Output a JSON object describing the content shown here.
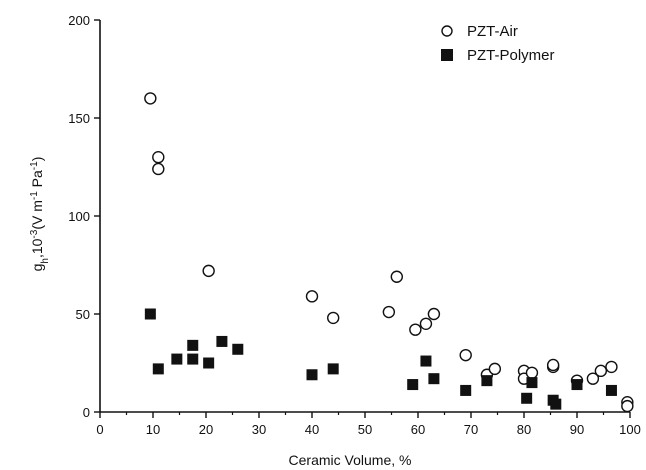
{
  "chart_data": {
    "type": "scatter",
    "title": "",
    "xlabel": "Ceramic Volume, %",
    "ylabel": {
      "prefix": "g",
      "sub": "h",
      "mid": ",10",
      "sup1": "-3",
      "units": "(V m",
      "sup2": "-1",
      "units2": " Pa",
      "sup3": "-1",
      "close": ")"
    },
    "xlim": [
      0,
      100
    ],
    "ylim": [
      0,
      200
    ],
    "xticks": [
      0,
      10,
      20,
      30,
      40,
      50,
      60,
      70,
      80,
      90,
      100
    ],
    "yticks": [
      0,
      50,
      100,
      150,
      200
    ],
    "legend_position": "top-right",
    "grid": false,
    "series": [
      {
        "name": "PZT-Air",
        "marker": "open-circle",
        "color": "#111111",
        "points": [
          [
            9.5,
            160
          ],
          [
            11,
            130
          ],
          [
            11,
            124
          ],
          [
            20.5,
            72
          ],
          [
            40,
            59
          ],
          [
            44,
            48
          ],
          [
            54.5,
            51
          ],
          [
            56,
            69
          ],
          [
            59.5,
            42
          ],
          [
            61.5,
            45
          ],
          [
            63,
            50
          ],
          [
            69,
            29
          ],
          [
            73,
            19
          ],
          [
            74.5,
            22
          ],
          [
            80,
            21
          ],
          [
            80,
            17
          ],
          [
            81.5,
            20
          ],
          [
            85.5,
            23
          ],
          [
            85.5,
            24
          ],
          [
            90,
            16
          ],
          [
            93,
            17
          ],
          [
            94.5,
            21
          ],
          [
            96.5,
            23
          ],
          [
            99.5,
            5
          ],
          [
            99.5,
            3
          ]
        ]
      },
      {
        "name": "PZT-Polymer",
        "marker": "filled-square",
        "color": "#111111",
        "points": [
          [
            9.5,
            50
          ],
          [
            11,
            22
          ],
          [
            14.5,
            27
          ],
          [
            17.5,
            27
          ],
          [
            17.5,
            34
          ],
          [
            20.5,
            25
          ],
          [
            23,
            36
          ],
          [
            26,
            32
          ],
          [
            40,
            19
          ],
          [
            44,
            22
          ],
          [
            59,
            14
          ],
          [
            61.5,
            26
          ],
          [
            63,
            17
          ],
          [
            69,
            11
          ],
          [
            73,
            16
          ],
          [
            80.5,
            7
          ],
          [
            81.5,
            15
          ],
          [
            85.5,
            6
          ],
          [
            86,
            4
          ],
          [
            90,
            14
          ],
          [
            96.5,
            11
          ]
        ]
      }
    ]
  }
}
